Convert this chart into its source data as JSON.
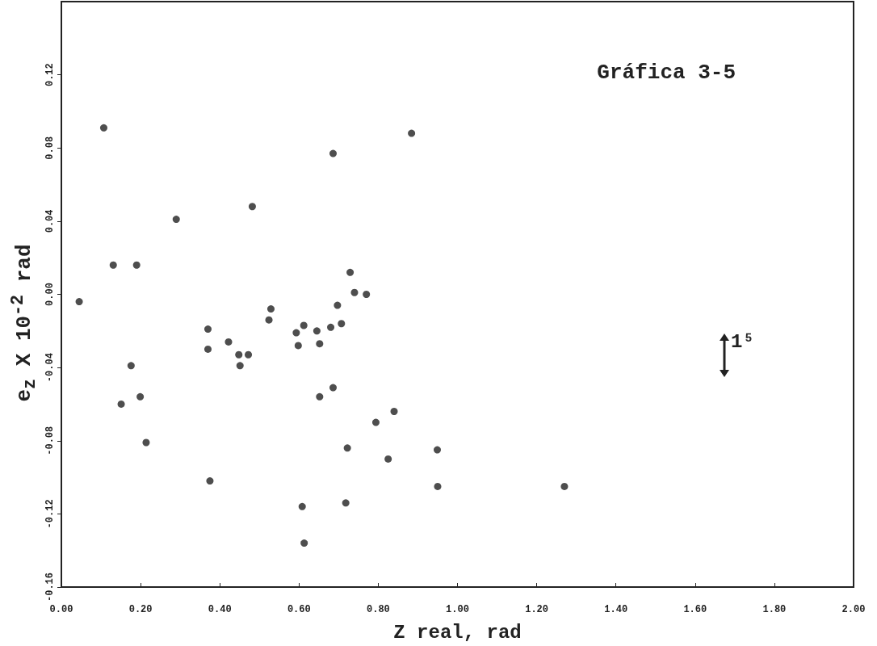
{
  "chart_data": {
    "type": "scatter",
    "title": "Gráfica 3-5",
    "xlabel": "Z real, rad",
    "ylabel": "e$_{z}$ X 10$^{-2}$ rad",
    "annotations": [
      "1⁵"
    ],
    "xlim": [
      0,
      2
    ],
    "xticks": [
      {
        "value": 0,
        "label": "0.00"
      },
      {
        "value": 0.2,
        "label": "0.20"
      },
      {
        "value": 0.4,
        "label": "0.40"
      },
      {
        "value": 0.6,
        "label": "0.60"
      },
      {
        "value": 0.8,
        "label": "0.80"
      },
      {
        "value": 1,
        "label": "1.00"
      },
      {
        "value": 1.2,
        "label": "1.20"
      },
      {
        "value": 1.4,
        "label": "1.40"
      },
      {
        "value": 1.6,
        "label": "1.60"
      },
      {
        "value": 1.8,
        "label": "1.80"
      },
      {
        "value": 2,
        "label": "2.00"
      }
    ],
    "ylim": [
      -0.16,
      0.16
    ],
    "yticks": [
      {
        "value": -0.16,
        "label": "-0.16"
      },
      {
        "value": -0.12,
        "label": "-0.12"
      },
      {
        "value": -0.08,
        "label": "-0.08"
      },
      {
        "value": -0.04,
        "label": "-0.04"
      },
      {
        "value": 0,
        "label": "0.00"
      },
      {
        "value": 0.04,
        "label": "0.04"
      },
      {
        "value": 0.08,
        "label": "0.08"
      },
      {
        "value": 0.12,
        "label": "0.12"
      }
    ],
    "grid": false,
    "marker": "circle",
    "series": [
      {
        "color": "#222222",
        "x": [
          0.107,
          0.884,
          0.686,
          0.482,
          0.29,
          0.131,
          0.19,
          0.729,
          0.74,
          0.77,
          0.045,
          0.697,
          0.529,
          0.524,
          0.37,
          0.612,
          0.593,
          0.645,
          0.68,
          0.707,
          0.37,
          0.422,
          0.598,
          0.652,
          0.448,
          0.472,
          0.451,
          0.176,
          0.686,
          0.652,
          0.199,
          0.151,
          0.84,
          0.794,
          0.214,
          0.722,
          0.949,
          0.825,
          0.375,
          0.95,
          0.718,
          0.608,
          0.613,
          1.27
        ],
        "values": [
          0.091,
          0.088,
          0.077,
          0.048,
          0.041,
          0.016,
          0.016,
          0.012,
          0.001,
          0.0,
          -0.004,
          -0.006,
          -0.008,
          -0.014,
          -0.019,
          -0.017,
          -0.021,
          -0.02,
          -0.018,
          -0.016,
          -0.03,
          -0.026,
          -0.028,
          -0.027,
          -0.033,
          -0.033,
          -0.039,
          -0.039,
          -0.051,
          -0.056,
          -0.056,
          -0.06,
          -0.064,
          -0.07,
          -0.081,
          -0.084,
          -0.085,
          -0.09,
          -0.102,
          -0.105,
          -0.114,
          -0.116,
          -0.136,
          -0.105
        ]
      }
    ]
  }
}
